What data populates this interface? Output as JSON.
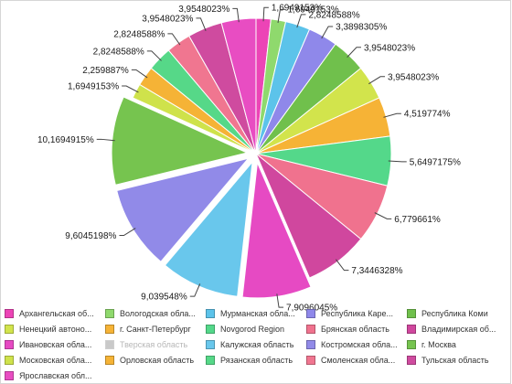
{
  "chart_data": {
    "type": "pie",
    "start_angle_deg": 0,
    "legend_placement": "bottom",
    "slices": [
      {
        "label": "Архангельская об...",
        "value": 1.6949153,
        "data_label": "1,6949153%",
        "color": "#ec44b6",
        "visible": true
      },
      {
        "label": "Вологодская обла...",
        "value": 1.6949153,
        "data_label": "1,6949153%",
        "color": "#8fd96d",
        "visible": true
      },
      {
        "label": "Мурманская обла...",
        "value": 2.8248588,
        "data_label": "2,8248588%",
        "color": "#5cc3ea",
        "visible": true
      },
      {
        "label": "Республика Каре...",
        "value": 3.3898305,
        "data_label": "3,3898305%",
        "color": "#8f88ea",
        "visible": true
      },
      {
        "label": "Республика Коми",
        "value": 3.9548023,
        "data_label": "3,9548023%",
        "color": "#70c04c",
        "visible": true
      },
      {
        "label": "Ненецкий автоно...",
        "value": 3.9548023,
        "data_label": "3,9548023%",
        "color": "#d2e44c",
        "visible": true
      },
      {
        "label": "г. Санкт-Петербург",
        "value": 4.519774,
        "data_label": "4,519774%",
        "color": "#f6b336",
        "visible": true
      },
      {
        "label": "Novgorod Region",
        "value": 5.6497175,
        "data_label": "5,6497175%",
        "color": "#54d88a",
        "visible": true
      },
      {
        "label": "Брянская область",
        "value": 6.779661,
        "data_label": "6,779661%",
        "color": "#f0728e",
        "visible": true
      },
      {
        "label": "Владимирская об...",
        "value": 7.3446328,
        "data_label": "7,3446328%",
        "color": "#d0479e",
        "visible": true
      },
      {
        "label": "Ивановская обла...",
        "value": 7.9096045,
        "data_label": "7,9096045%",
        "color": "#e64ac3",
        "visible": true
      },
      {
        "label": "Тверская область",
        "value": 0,
        "data_label": "",
        "color": "#c9c9c9",
        "visible": false
      },
      {
        "label": "Калужская область",
        "value": 9.039548,
        "data_label": "9,039548%",
        "color": "#69c7ec",
        "visible": true
      },
      {
        "label": "Костромская обла...",
        "value": 9.6045198,
        "data_label": "9,6045198%",
        "color": "#918ae8",
        "visible": true
      },
      {
        "label": "г. Москва",
        "value": 10.1694915,
        "data_label": "10,1694915%",
        "color": "#76c44f",
        "visible": true
      },
      {
        "label": "Московская обла...",
        "value": 1.6949153,
        "data_label": "1,6949153%",
        "color": "#cfe24b",
        "visible": true
      },
      {
        "label": "Орловская область",
        "value": 2.259887,
        "data_label": "2,259887%",
        "color": "#f5b336",
        "visible": true
      },
      {
        "label": "Рязанская область",
        "value": 2.8248588,
        "data_label": "2,8248588%",
        "color": "#56d888",
        "visible": true
      },
      {
        "label": "Смоленская обла...",
        "value": 2.8248588,
        "data_label": "2,8248588%",
        "color": "#f07690",
        "visible": true
      },
      {
        "label": "Тульская область",
        "value": 3.9548023,
        "data_label": "3,9548023%",
        "color": "#cf4b9f",
        "visible": true
      },
      {
        "label": "Ярославская обл...",
        "value": 3.9548023,
        "data_label": "3,9548023%",
        "color": "#e84dc2",
        "visible": true
      }
    ]
  }
}
